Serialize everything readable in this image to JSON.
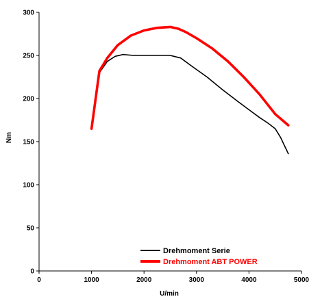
{
  "chart_data": {
    "type": "line",
    "xlabel": "U/min",
    "ylabel": "Nm",
    "xlim": [
      0,
      5000
    ],
    "ylim": [
      0,
      300
    ],
    "xticks": [
      0,
      1000,
      2000,
      3000,
      4000,
      5000
    ],
    "yticks": [
      0,
      50,
      100,
      150,
      200,
      250,
      300
    ],
    "xtick_labels": [
      "0",
      "1000",
      "2000",
      "3000",
      "4000",
      "5000"
    ],
    "ytick_labels": [
      "0",
      "50",
      "100",
      "150",
      "200",
      "250",
      "300"
    ],
    "grid": false,
    "legend_position": "bottom-right",
    "series": [
      {
        "name": "Drehmoment Serie",
        "color": "#000000",
        "x": [
          1000,
          1150,
          1300,
          1450,
          1600,
          1800,
          2000,
          2300,
          2500,
          2700,
          2900,
          3200,
          3500,
          3800,
          4000,
          4200,
          4350,
          4500,
          4600,
          4750
        ],
        "y": [
          165,
          230,
          243,
          249,
          251,
          250,
          250,
          250,
          250,
          247,
          238,
          225,
          210,
          196,
          187,
          178,
          172,
          165,
          155,
          136
        ]
      },
      {
        "name": "Drehmoment ABT POWER",
        "color": "#ff0000",
        "x": [
          1000,
          1150,
          1300,
          1500,
          1750,
          2000,
          2250,
          2500,
          2650,
          2800,
          3000,
          3300,
          3600,
          3900,
          4200,
          4500,
          4750
        ],
        "y": [
          165,
          232,
          247,
          262,
          273,
          279,
          282,
          283,
          281,
          277,
          270,
          258,
          243,
          225,
          205,
          182,
          169
        ]
      }
    ]
  }
}
